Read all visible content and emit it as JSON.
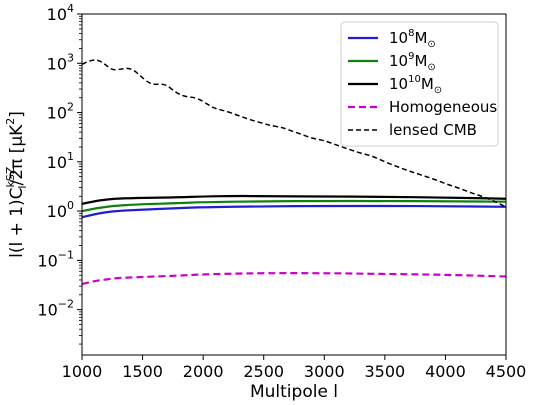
{
  "chart_data": {
    "type": "line",
    "title": "",
    "xlabel": "Multipole l",
    "ylabel": "l(l + 1)C_l^{kSZ}/2π [μK²]",
    "ylabel_parts": {
      "main": "l(l + 1)C",
      "sup": "kSZ",
      "sub": "l",
      "tail": "/2π [μK",
      "unit_sup": "2",
      "end": "]"
    },
    "xscale": "linear",
    "yscale": "log",
    "xlim": [
      1000,
      4500
    ],
    "ylim": [
      0.0012,
      10000
    ],
    "xticks": [
      1000,
      1500,
      2000,
      2500,
      3000,
      3500,
      4000,
      4500
    ],
    "xtick_labels": [
      "1000",
      "1500",
      "2000",
      "2500",
      "3000",
      "3500",
      "4000",
      "4500"
    ],
    "yticks": [
      {
        "value": 0.01,
        "base": "10",
        "exp": "−2"
      },
      {
        "value": 0.1,
        "base": "10",
        "exp": "−1"
      },
      {
        "value": 1,
        "base": "10",
        "exp": "0"
      },
      {
        "value": 10,
        "base": "10",
        "exp": "1"
      },
      {
        "value": 100,
        "base": "10",
        "exp": "2"
      },
      {
        "value": 1000,
        "base": "10",
        "exp": "3"
      },
      {
        "value": 10000,
        "base": "10",
        "exp": "4"
      }
    ],
    "grid": false,
    "legend_position": "top-right",
    "series": [
      {
        "name": "10^8 M_⊙",
        "label_parts": {
          "base": "10",
          "exp": "8",
          "unit": "M",
          "sub": "⊙"
        },
        "color": "#1f1fd0",
        "dash": "solid",
        "x": [
          1000,
          1100,
          1200,
          1300,
          1500,
          1800,
          2000,
          2500,
          3000,
          3500,
          4000,
          4500
        ],
        "y": [
          0.75,
          0.86,
          0.95,
          1.01,
          1.07,
          1.15,
          1.2,
          1.25,
          1.27,
          1.27,
          1.26,
          1.22
        ]
      },
      {
        "name": "10^9 M_⊙",
        "label_parts": {
          "base": "10",
          "exp": "9",
          "unit": "M",
          "sub": "⊙"
        },
        "color": "#108010",
        "dash": "solid",
        "x": [
          1000,
          1100,
          1200,
          1300,
          1500,
          1800,
          2000,
          2500,
          3000,
          3500,
          4000,
          4500
        ],
        "y": [
          1.0,
          1.12,
          1.22,
          1.3,
          1.38,
          1.45,
          1.52,
          1.58,
          1.6,
          1.6,
          1.58,
          1.55
        ]
      },
      {
        "name": "10^10 M_⊙",
        "label_parts": {
          "base": "10",
          "exp": "10",
          "unit": "M",
          "sub": "⊙"
        },
        "color": "#000000",
        "dash": "solid",
        "x": [
          1000,
          1100,
          1200,
          1300,
          1500,
          1800,
          2000,
          2300,
          2500,
          3000,
          3500,
          4000,
          4500
        ],
        "y": [
          1.4,
          1.58,
          1.72,
          1.8,
          1.85,
          1.9,
          1.98,
          2.03,
          2.0,
          1.98,
          1.95,
          1.88,
          1.78
        ]
      },
      {
        "name": "Homogeneous",
        "label_parts": {
          "base": "",
          "exp": "",
          "unit": "Homogeneous",
          "sub": ""
        },
        "color": "#cc00cc",
        "dash": "dashed",
        "x": [
          1000,
          1100,
          1200,
          1300,
          1500,
          1800,
          2000,
          2300,
          2500,
          3000,
          3500,
          4000,
          4500
        ],
        "y": [
          0.033,
          0.038,
          0.041,
          0.044,
          0.046,
          0.049,
          0.052,
          0.054,
          0.055,
          0.055,
          0.053,
          0.051,
          0.047
        ]
      },
      {
        "name": "lensed CMB",
        "label_parts": {
          "base": "",
          "exp": "",
          "unit": "lensed CMB",
          "sub": ""
        },
        "color": "#000000",
        "dash": "dashed-thin",
        "x": [
          1000,
          1050,
          1120,
          1180,
          1250,
          1320,
          1380,
          1430,
          1480,
          1550,
          1600,
          1650,
          1700,
          1780,
          1850,
          1950,
          2050,
          2100,
          2200,
          2300,
          2400,
          2500,
          2550,
          2650,
          2700,
          2800,
          2900,
          3000,
          3100,
          3200,
          3300,
          3400,
          3500,
          3600,
          3700,
          3800,
          3900,
          4000,
          4100,
          4200,
          4300,
          4400,
          4450,
          4500
        ],
        "y": [
          950,
          1100,
          1200,
          1000,
          720,
          760,
          800,
          720,
          560,
          400,
          370,
          380,
          360,
          250,
          210,
          200,
          140,
          120,
          105,
          85,
          70,
          60,
          55,
          50,
          45,
          37,
          30,
          27,
          22,
          18,
          15,
          13,
          10,
          8,
          6.5,
          5.4,
          4.5,
          3.6,
          3.0,
          2.4,
          2.0,
          1.6,
          1.4,
          1.2
        ]
      }
    ]
  }
}
